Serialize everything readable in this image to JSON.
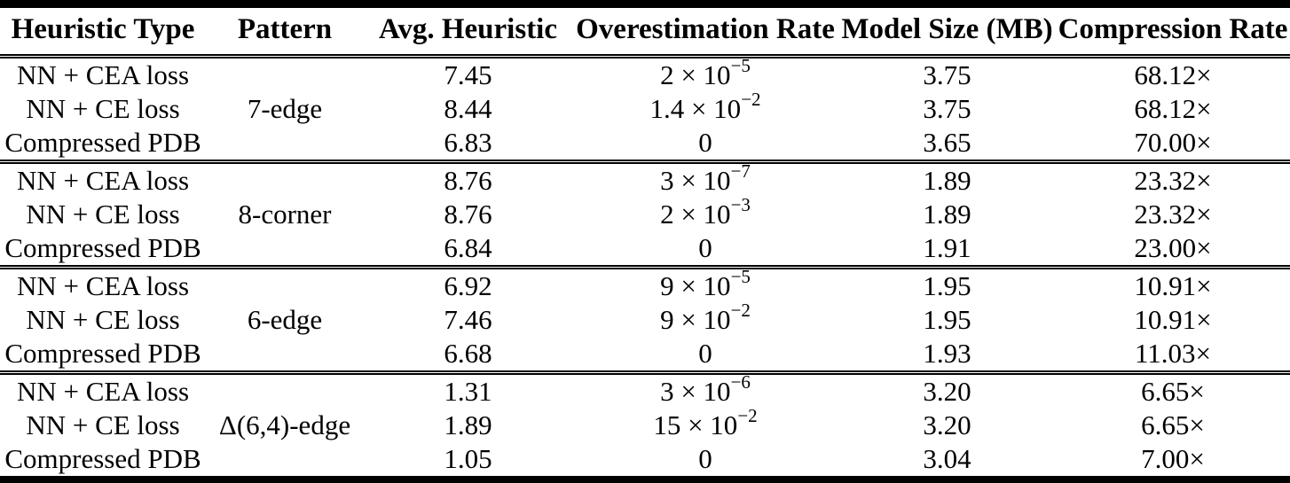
{
  "table": {
    "columns": [
      "Heuristic Type",
      "Pattern",
      "Avg. Heuristic",
      "Overestimation Rate",
      "Model Size (MB)",
      "Compression Rate"
    ],
    "groups": [
      {
        "pattern": "7-edge",
        "rows": [
          {
            "type": "NN + CEA loss",
            "avg": "7.45",
            "over_base": "2 × 10",
            "over_exp": "−5",
            "size": "3.75",
            "compression": "68.12×"
          },
          {
            "type": "NN + CE loss",
            "avg": "8.44",
            "over_base": "1.4 × 10",
            "over_exp": "−2",
            "size": "3.75",
            "compression": "68.12×"
          },
          {
            "type": "Compressed PDB",
            "avg": "6.83",
            "over_base": "0",
            "over_exp": "",
            "size": "3.65",
            "compression": "70.00×"
          }
        ]
      },
      {
        "pattern": "8-corner",
        "rows": [
          {
            "type": "NN + CEA loss",
            "avg": "8.76",
            "over_base": "3 × 10",
            "over_exp": "−7",
            "size": "1.89",
            "compression": "23.32×"
          },
          {
            "type": "NN + CE loss",
            "avg": "8.76",
            "over_base": "2 × 10",
            "over_exp": "−3",
            "size": "1.89",
            "compression": "23.32×"
          },
          {
            "type": "Compressed PDB",
            "avg": "6.84",
            "over_base": "0",
            "over_exp": "",
            "size": "1.91",
            "compression": "23.00×"
          }
        ]
      },
      {
        "pattern": "6-edge",
        "rows": [
          {
            "type": "NN + CEA loss",
            "avg": "6.92",
            "over_base": "9 × 10",
            "over_exp": "−5",
            "size": "1.95",
            "compression": "10.91×"
          },
          {
            "type": "NN + CE loss",
            "avg": "7.46",
            "over_base": "9 × 10",
            "over_exp": "−2",
            "size": "1.95",
            "compression": "10.91×"
          },
          {
            "type": "Compressed PDB",
            "avg": "6.68",
            "over_base": "0",
            "over_exp": "",
            "size": "1.93",
            "compression": "11.03×"
          }
        ]
      },
      {
        "pattern": "Δ(6,4)-edge",
        "rows": [
          {
            "type": "NN + CEA loss",
            "avg": "1.31",
            "over_base": "3 × 10",
            "over_exp": "−6",
            "size": "3.20",
            "compression": "6.65×"
          },
          {
            "type": "NN + CE loss",
            "avg": "1.89",
            "over_base": "15 × 10",
            "over_exp": "−2",
            "size": "3.20",
            "compression": "6.65×"
          },
          {
            "type": "Compressed PDB",
            "avg": "1.05",
            "over_base": "0",
            "over_exp": "",
            "size": "3.04",
            "compression": "7.00×"
          }
        ]
      }
    ]
  }
}
